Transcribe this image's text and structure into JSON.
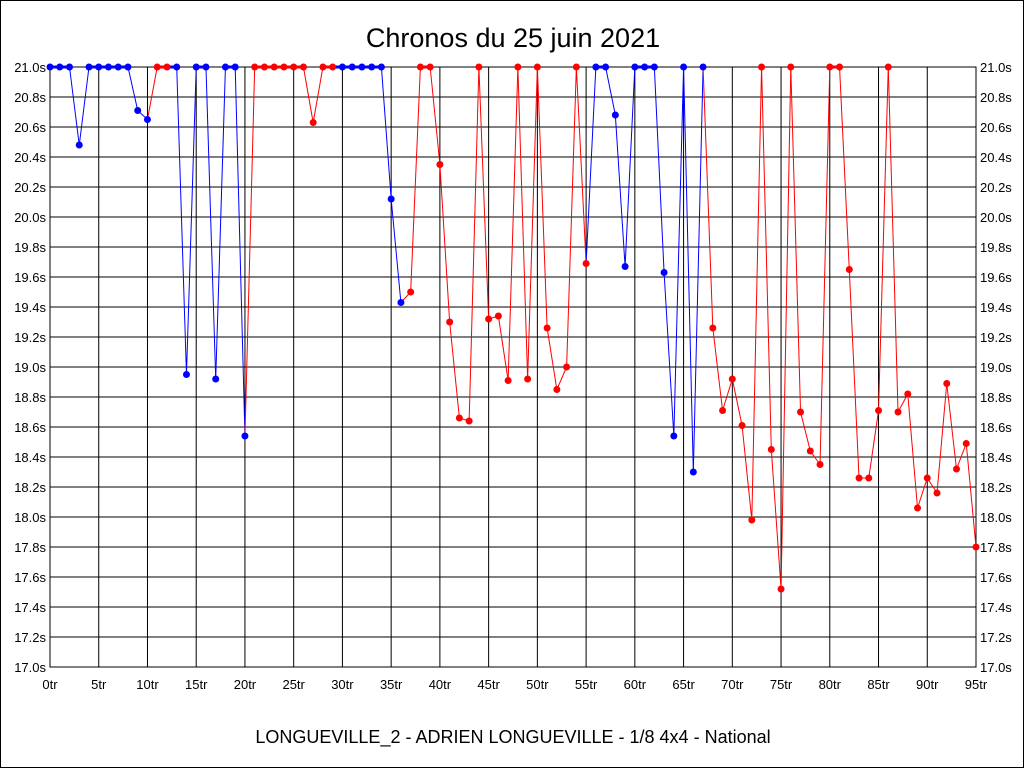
{
  "chart_data": {
    "type": "line",
    "title": "Chronos du 25 juin 2021",
    "subtitle": "LONGUEVILLE_2 - ADRIEN LONGUEVILLE - 1/8 4x4 - National",
    "xlabel": "",
    "ylabel": "",
    "xlim": [
      0,
      95
    ],
    "ylim": [
      17.0,
      21.0
    ],
    "x_ticks": [
      0,
      5,
      10,
      15,
      20,
      25,
      30,
      35,
      40,
      45,
      50,
      55,
      60,
      65,
      70,
      75,
      80,
      85,
      90,
      95
    ],
    "x_tick_suffix": "tr",
    "y_ticks": [
      17.0,
      17.2,
      17.4,
      17.6,
      17.8,
      18.0,
      18.2,
      18.4,
      18.6,
      18.8,
      19.0,
      19.2,
      19.4,
      19.6,
      19.8,
      20.0,
      20.2,
      20.4,
      20.6,
      20.8,
      21.0
    ],
    "y_tick_suffix": "s",
    "grid": true,
    "colors": {
      "blue": "#0000ff",
      "red": "#ff0000"
    },
    "points": [
      [
        0,
        21.0,
        "blue"
      ],
      [
        1,
        21.0,
        "blue"
      ],
      [
        2,
        21.0,
        "blue"
      ],
      [
        3,
        20.48,
        "blue"
      ],
      [
        4,
        21.0,
        "blue"
      ],
      [
        5,
        21.0,
        "blue"
      ],
      [
        6,
        21.0,
        "blue"
      ],
      [
        7,
        21.0,
        "blue"
      ],
      [
        8,
        21.0,
        "blue"
      ],
      [
        9,
        20.71,
        "blue"
      ],
      [
        10,
        20.65,
        "blue"
      ],
      [
        11,
        21.0,
        "red"
      ],
      [
        12,
        21.0,
        "red"
      ],
      [
        13,
        21.0,
        "blue"
      ],
      [
        14,
        18.95,
        "blue"
      ],
      [
        15,
        21.0,
        "blue"
      ],
      [
        16,
        21.0,
        "blue"
      ],
      [
        17,
        18.92,
        "blue"
      ],
      [
        18,
        21.0,
        "blue"
      ],
      [
        19,
        21.0,
        "blue"
      ],
      [
        20,
        18.54,
        "blue"
      ],
      [
        21,
        21.0,
        "red"
      ],
      [
        22,
        21.0,
        "red"
      ],
      [
        23,
        21.0,
        "red"
      ],
      [
        24,
        21.0,
        "red"
      ],
      [
        25,
        21.0,
        "red"
      ],
      [
        26,
        21.0,
        "red"
      ],
      [
        27,
        20.63,
        "red"
      ],
      [
        28,
        21.0,
        "red"
      ],
      [
        29,
        21.0,
        "red"
      ],
      [
        30,
        21.0,
        "blue"
      ],
      [
        31,
        21.0,
        "blue"
      ],
      [
        32,
        21.0,
        "blue"
      ],
      [
        33,
        21.0,
        "blue"
      ],
      [
        34,
        21.0,
        "blue"
      ],
      [
        35,
        20.12,
        "blue"
      ],
      [
        36,
        19.43,
        "blue"
      ],
      [
        37,
        19.5,
        "red"
      ],
      [
        38,
        21.0,
        "red"
      ],
      [
        39,
        21.0,
        "red"
      ],
      [
        40,
        20.35,
        "red"
      ],
      [
        41,
        19.3,
        "red"
      ],
      [
        42,
        18.66,
        "red"
      ],
      [
        43,
        18.64,
        "red"
      ],
      [
        44,
        21.0,
        "red"
      ],
      [
        45,
        19.32,
        "red"
      ],
      [
        46,
        19.34,
        "red"
      ],
      [
        47,
        18.91,
        "red"
      ],
      [
        48,
        21.0,
        "red"
      ],
      [
        49,
        18.92,
        "red"
      ],
      [
        50,
        21.0,
        "red"
      ],
      [
        51,
        19.26,
        "red"
      ],
      [
        52,
        18.85,
        "red"
      ],
      [
        53,
        19.0,
        "red"
      ],
      [
        54,
        21.0,
        "red"
      ],
      [
        55,
        19.69,
        "red"
      ],
      [
        56,
        21.0,
        "blue"
      ],
      [
        57,
        21.0,
        "blue"
      ],
      [
        58,
        20.68,
        "blue"
      ],
      [
        59,
        19.67,
        "blue"
      ],
      [
        60,
        21.0,
        "blue"
      ],
      [
        61,
        21.0,
        "blue"
      ],
      [
        62,
        21.0,
        "blue"
      ],
      [
        63,
        19.63,
        "blue"
      ],
      [
        64,
        18.54,
        "blue"
      ],
      [
        65,
        21.0,
        "blue"
      ],
      [
        66,
        18.3,
        "blue"
      ],
      [
        67,
        21.0,
        "blue"
      ],
      [
        68,
        19.26,
        "red"
      ],
      [
        69,
        18.71,
        "red"
      ],
      [
        70,
        18.92,
        "red"
      ],
      [
        71,
        18.61,
        "red"
      ],
      [
        72,
        17.98,
        "red"
      ],
      [
        73,
        21.0,
        "red"
      ],
      [
        74,
        18.45,
        "red"
      ],
      [
        75,
        17.52,
        "red"
      ],
      [
        76,
        21.0,
        "red"
      ],
      [
        77,
        18.7,
        "red"
      ],
      [
        78,
        18.44,
        "red"
      ],
      [
        79,
        18.35,
        "red"
      ],
      [
        80,
        21.0,
        "red"
      ],
      [
        81,
        21.0,
        "red"
      ],
      [
        82,
        19.65,
        "red"
      ],
      [
        83,
        18.26,
        "red"
      ],
      [
        84,
        18.26,
        "red"
      ],
      [
        85,
        18.71,
        "red"
      ],
      [
        86,
        21.0,
        "red"
      ],
      [
        87,
        18.7,
        "red"
      ],
      [
        88,
        18.82,
        "red"
      ],
      [
        89,
        18.06,
        "red"
      ],
      [
        90,
        18.26,
        "red"
      ],
      [
        91,
        18.16,
        "red"
      ],
      [
        92,
        18.89,
        "red"
      ],
      [
        93,
        18.32,
        "red"
      ],
      [
        94,
        18.49,
        "red"
      ],
      [
        95,
        17.8,
        "red"
      ]
    ]
  }
}
